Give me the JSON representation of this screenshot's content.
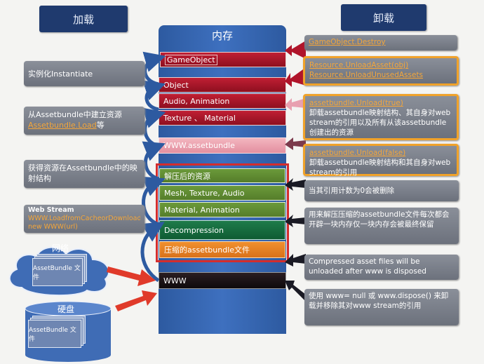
{
  "left_title": "加载",
  "right_title": "卸载",
  "memory_title": "内存",
  "stack": {
    "gameobject": "GameObject",
    "object": "Object",
    "audio_anim": "Audio, Animation",
    "texture_mat": "Texture 、 Material",
    "www_bundle": "WWW.assetbundle",
    "decompressed": "解压后的资源",
    "mesh": "Mesh, Texture, Audio",
    "material": "Material, Animation",
    "decompression": "Decompression",
    "compressed": "压缩的assetbundle文件",
    "www": "WWW"
  },
  "left_notes": {
    "instantiate": "实例化Instantiate",
    "create_line1": "从Assetbundle中建立资源",
    "create_link": "Assetbundle.Load",
    "create_suffix": "等",
    "mapping": "获得资源在Assetbundle中的映射结构",
    "webstream_title": "Web Stream",
    "webstream_l1": "WWW.LoadfromCacheorDownload",
    "webstream_l2": "new WWW(url)"
  },
  "storage": {
    "network": "网络",
    "network_file": "AssetBundle 文件",
    "disk": "硬盘",
    "disk_file": "AssetBundle 文件"
  },
  "right_notes": {
    "destroy": "GameObject.Destroy",
    "unload_obj": "Resource.UnloadAsset(obj)",
    "unload_unused": "Resource.UnloadUnusedAssets",
    "unload_true": "assetbundle.Unload(true)",
    "unload_true_desc": "卸载assetbundle映射结构、其自身对web stream的引用以及所有从该assetbundle创建出的资源",
    "unload_false": "assetbundle.Unload(false)",
    "unload_false_desc": "卸载assetbundle映射结构和其自身对web stream的引用",
    "refcount": "当其引用计数为0会被删除",
    "decompress_mem": "用来解压压缩的assetbundle文件每次都会开辟一块内存仅一块内存会被最终保留",
    "compressed_unload": "Compressed asset files will be unloaded after www is disposed",
    "www_null": "使用 www= null 或 www.dispose() 来卸载并移除其对www stream的引用"
  }
}
